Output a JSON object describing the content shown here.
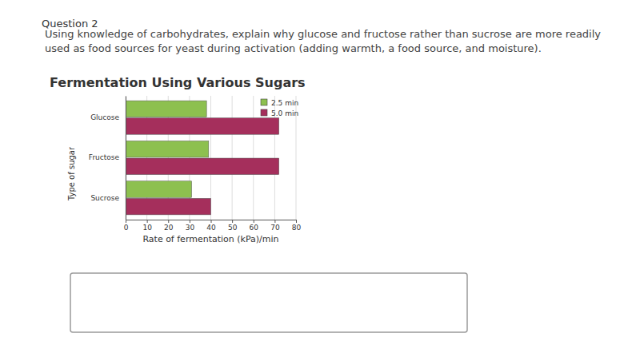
{
  "page": {
    "question_label": "Question 2",
    "prompt_lines": [
      "Using knowledge of carbohydrates, explain why glucose and fructose rather than sucrose are more readily",
      "used as food sources for yeast during activation (adding warmth, a food source, and moisture)."
    ]
  },
  "chart_data": {
    "type": "bar",
    "orientation": "horizontal",
    "title": "Fermentation Using Various Sugars",
    "x_label": "Rate of fermentation (kPa)/min",
    "y_label": "Type of sugar",
    "categories": [
      "Glucose",
      "Fructose",
      "Sucrose"
    ],
    "series": [
      {
        "name": "2.5 min",
        "color": "#8dc04f",
        "values": [
          38,
          39,
          31
        ]
      },
      {
        "name": "5.0 min",
        "color": "#a52f5c",
        "values": [
          72,
          72,
          40
        ]
      }
    ],
    "xlim": [
      0,
      80
    ],
    "xticks": [
      0,
      10,
      20,
      30,
      40,
      50,
      60,
      70,
      80
    ],
    "grid": true,
    "legend": "top-right"
  }
}
